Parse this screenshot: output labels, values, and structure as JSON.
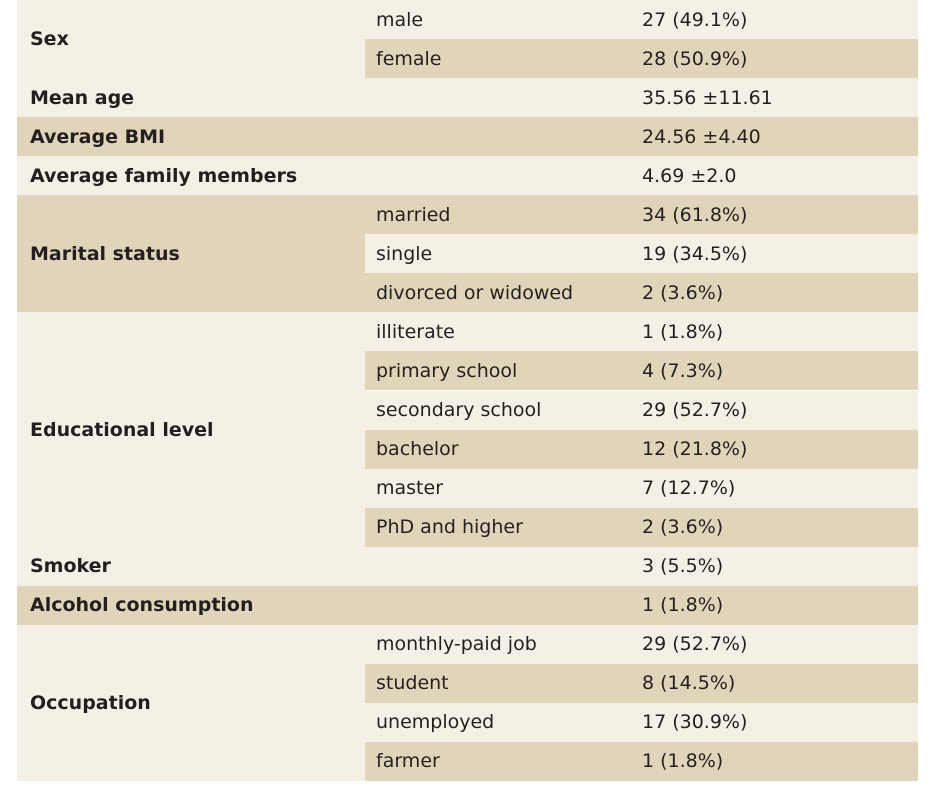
{
  "table": {
    "groups": [
      {
        "label": "Sex",
        "rows": [
          {
            "sub": "male",
            "value": "27 (49.1%)"
          },
          {
            "sub": "female",
            "value": "28 (50.9%)"
          }
        ]
      },
      {
        "label": "Mean age",
        "rows": [
          {
            "sub": "",
            "value": "35.56 ±11.61"
          }
        ]
      },
      {
        "label": "Average BMI",
        "rows": [
          {
            "sub": "",
            "value": "24.56 ±4.40"
          }
        ]
      },
      {
        "label": "Average family members",
        "rows": [
          {
            "sub": "",
            "value": "4.69 ±2.0"
          }
        ]
      },
      {
        "label": "Marital status",
        "rows": [
          {
            "sub": "married",
            "value": "34 (61.8%)"
          },
          {
            "sub": "single",
            "value": "19 (34.5%)"
          },
          {
            "sub": "divorced or widowed",
            "value": "2 (3.6%)"
          }
        ]
      },
      {
        "label": "Educational level",
        "rows": [
          {
            "sub": "illiterate",
            "value": "1 (1.8%)"
          },
          {
            "sub": "primary school",
            "value": "4 (7.3%)"
          },
          {
            "sub": "secondary school",
            "value": "29 (52.7%)"
          },
          {
            "sub": "bachelor",
            "value": "12 (21.8%)"
          },
          {
            "sub": "master",
            "value": "7 (12.7%)"
          },
          {
            "sub": "PhD and higher",
            "value": "2 (3.6%)"
          }
        ]
      },
      {
        "label": "Smoker",
        "rows": [
          {
            "sub": "",
            "value": "3 (5.5%)"
          }
        ]
      },
      {
        "label": "Alcohol consumption",
        "rows": [
          {
            "sub": "",
            "value": "1 (1.8%)"
          }
        ]
      },
      {
        "label": "Occupation",
        "rows": [
          {
            "sub": "monthly-paid job",
            "value": "29 (52.7%)"
          },
          {
            "sub": "student",
            "value": "8 (14.5%)"
          },
          {
            "sub": "unemployed",
            "value": "17 (30.9%)"
          },
          {
            "sub": "farmer",
            "value": "1 (1.8%)"
          }
        ]
      }
    ]
  },
  "colors": {
    "light_row": "#f5f0e6",
    "dark_row": "#e1d5b9",
    "text": "#231f20"
  }
}
